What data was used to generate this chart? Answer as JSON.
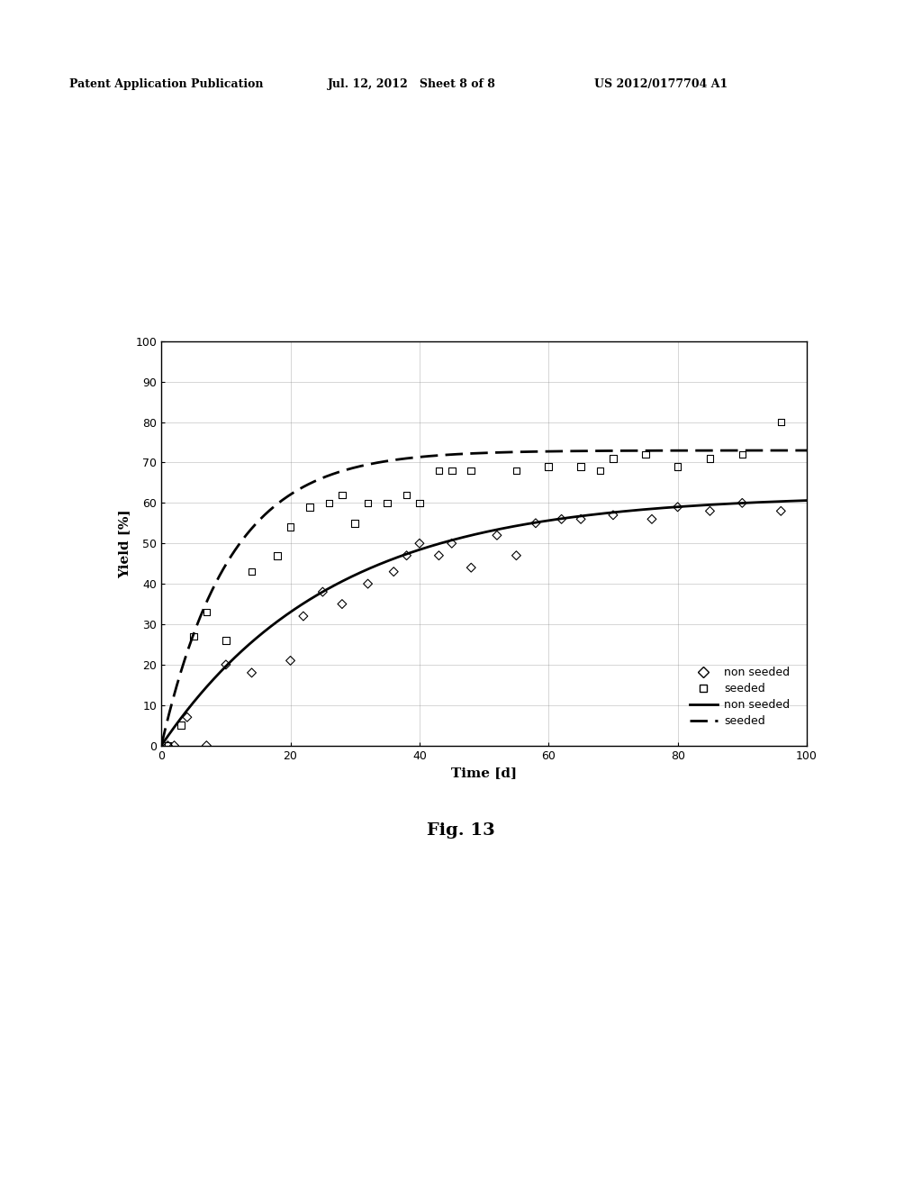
{
  "header_left": "Patent Application Publication",
  "header_mid": "Jul. 12, 2012   Sheet 8 of 8",
  "header_right": "US 2012/0177704 A1",
  "fig_caption": "Fig. 13",
  "xlabel": "Time [d]",
  "ylabel": "Yield [%]",
  "xlim": [
    0,
    100
  ],
  "ylim": [
    0,
    100
  ],
  "xticks": [
    0,
    20,
    40,
    60,
    80,
    100
  ],
  "yticks": [
    0,
    10,
    20,
    30,
    40,
    50,
    60,
    70,
    80,
    90,
    100
  ],
  "non_seeded_data_x": [
    1,
    2,
    4,
    7,
    10,
    14,
    20,
    22,
    25,
    28,
    32,
    36,
    38,
    40,
    43,
    45,
    48,
    52,
    55,
    58,
    62,
    65,
    70,
    76,
    80,
    85,
    90,
    96
  ],
  "non_seeded_data_y": [
    0,
    0,
    7,
    0,
    20,
    18,
    21,
    32,
    38,
    35,
    40,
    43,
    47,
    50,
    47,
    50,
    44,
    52,
    47,
    55,
    56,
    56,
    57,
    56,
    59,
    58,
    60,
    58
  ],
  "seeded_data_x": [
    1,
    3,
    5,
    7,
    10,
    14,
    18,
    20,
    23,
    26,
    28,
    30,
    32,
    35,
    38,
    40,
    43,
    45,
    48,
    55,
    60,
    65,
    68,
    70,
    75,
    80,
    85,
    90,
    96
  ],
  "seeded_data_y": [
    0,
    5,
    27,
    33,
    26,
    43,
    47,
    54,
    59,
    60,
    62,
    55,
    60,
    60,
    62,
    60,
    68,
    68,
    68,
    68,
    69,
    69,
    68,
    71,
    72,
    69,
    71,
    72,
    80
  ],
  "background_color": "#ffffff",
  "plot_bg_color": "#ffffff",
  "grid_color": "#888888",
  "legend_labels": [
    "non seeded",
    "seeded",
    "non seeded",
    "seeded"
  ],
  "header_fontsize": 9,
  "axis_label_fontsize": 11,
  "tick_fontsize": 9,
  "legend_fontsize": 9,
  "caption_fontsize": 14
}
